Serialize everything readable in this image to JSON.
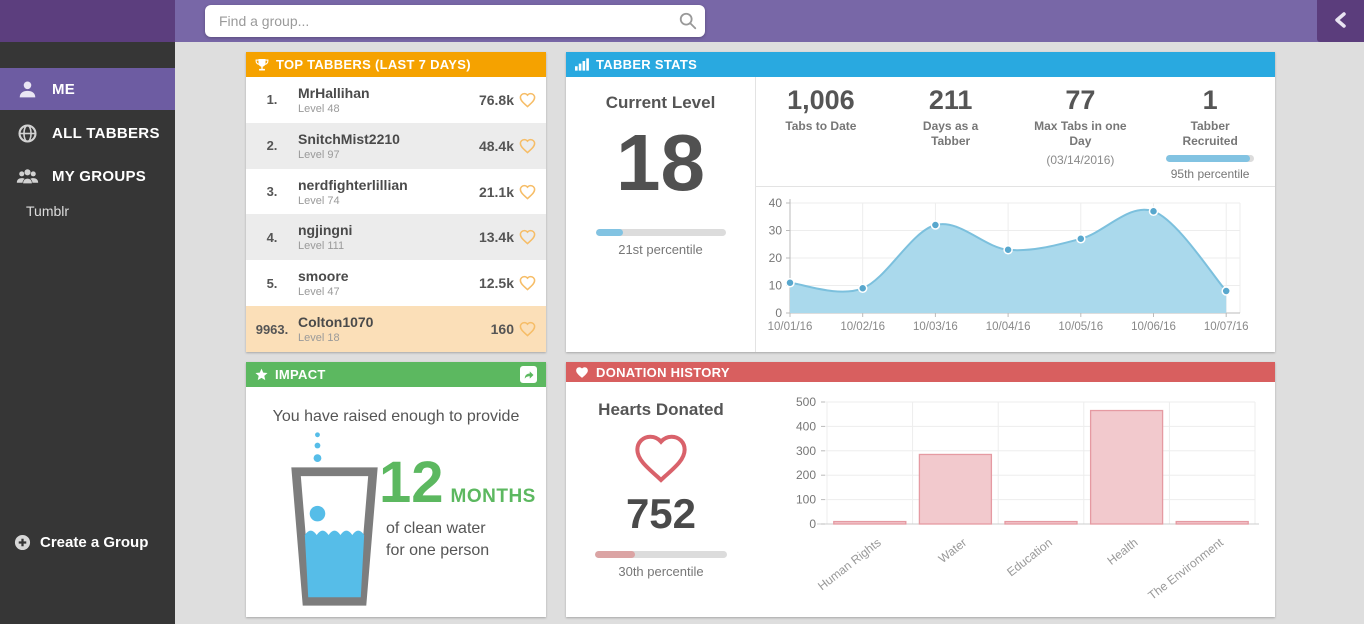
{
  "topbar": {
    "search_placeholder": "Find a group...",
    "search_icon": "magnifier-icon",
    "back_icon": "chevron-left-icon"
  },
  "sidebar": {
    "items": [
      {
        "label": "ME",
        "icon": "user-icon",
        "active": true
      },
      {
        "label": "ALL TABBERS",
        "icon": "globe-icon",
        "active": false
      },
      {
        "label": "MY GROUPS",
        "icon": "users-icon",
        "active": false
      }
    ],
    "group_links": [
      "Tumblr"
    ],
    "create_group_label": "Create a Group",
    "create_group_icon": "plus-circle-icon"
  },
  "top_tabbers": {
    "title": "TOP TABBERS (LAST 7 DAYS)",
    "icon": "trophy-icon",
    "value_icon": "heart-outline-icon",
    "rows": [
      {
        "rank": "1.",
        "name": "MrHallihan",
        "level": "Level 48",
        "value": "76.8k"
      },
      {
        "rank": "2.",
        "name": "SnitchMist2210",
        "level": "Level 97",
        "value": "48.4k"
      },
      {
        "rank": "3.",
        "name": "nerdfighterlillian",
        "level": "Level 74",
        "value": "21.1k"
      },
      {
        "rank": "4.",
        "name": "ngjingni",
        "level": "Level 111",
        "value": "13.4k"
      },
      {
        "rank": "5.",
        "name": "smoore",
        "level": "Level 47",
        "value": "12.5k"
      },
      {
        "rank": "9963.",
        "name": "Colton1070",
        "level": "Level 18",
        "value": "160",
        "highlighted": true
      }
    ]
  },
  "tabber_stats": {
    "title": "TABBER STATS",
    "icon": "bar-chart-icon",
    "current_level": {
      "label": "Current Level",
      "value": "18",
      "percent": 21,
      "percentile": "21st percentile"
    },
    "stats": [
      {
        "value": "1,006",
        "label": "Tabs to Date"
      },
      {
        "value": "211",
        "label": "Days as a Tabber"
      },
      {
        "value": "77",
        "label": "Max Tabs in one Day",
        "sublabel": "(03/14/2016)"
      },
      {
        "value": "1",
        "label": "Tabber Recruited",
        "percent": 95,
        "percentile": "95th percentile"
      }
    ]
  },
  "impact": {
    "title": "IMPACT",
    "icon": "star-icon",
    "share_icon": "share-arrow-icon",
    "graphic": "water-glass-icon",
    "intro": "You have raised enough to provide",
    "amount": "12",
    "unit": "MONTHS",
    "desc_line1": "of clean water",
    "desc_line2": "for one person"
  },
  "donation": {
    "title": "DONATION HISTORY",
    "icon": "heart-icon",
    "hearts_label": "Hearts Donated",
    "hearts_icon": "heart-outline-icon",
    "hearts_value": "752",
    "percent": 30,
    "percentile": "30th percentile"
  },
  "colors": {
    "topbar": "#7867a7",
    "topbar_dark": "#5c3e7e",
    "sidebar": "#363636",
    "sidebar_active": "#6d5ca2",
    "orange_header": "#f5a200",
    "blue_header": "#29a9e0",
    "green_header": "#5cb860",
    "red_header": "#d85f5f",
    "highlight_row": "#fbdfb8",
    "heart_outline_orange": "#f6bd67",
    "heart_red": "#d9626b",
    "progress_blue": "#82c3e2",
    "progress_red": "#dba4a4",
    "green_accent": "#5cb860",
    "water_blue": "#56bde8"
  },
  "chart_data": [
    {
      "type": "area",
      "x": [
        "10/01/16",
        "10/02/16",
        "10/03/16",
        "10/04/16",
        "10/05/16",
        "10/06/16",
        "10/07/16"
      ],
      "values": [
        11,
        9,
        32,
        23,
        27,
        37,
        8
      ],
      "ylim": [
        0,
        40
      ],
      "yticks": [
        0,
        10,
        20,
        30,
        40
      ],
      "grid": true,
      "legend": false,
      "colors": {
        "fill": "#aad9ec",
        "line": "#7cc0dd",
        "dot": "#58a7cd"
      }
    },
    {
      "type": "bar",
      "categories": [
        "Human Rights",
        "Water",
        "Education",
        "Health",
        "The Environment"
      ],
      "values": [
        10,
        285,
        10,
        465,
        10
      ],
      "ylim": [
        0,
        500
      ],
      "yticks": [
        0,
        100,
        200,
        300,
        400,
        500
      ],
      "grid": true,
      "legend": false,
      "colors": {
        "fill": "#f2c9cd",
        "border": "#e59aa2"
      }
    }
  ]
}
